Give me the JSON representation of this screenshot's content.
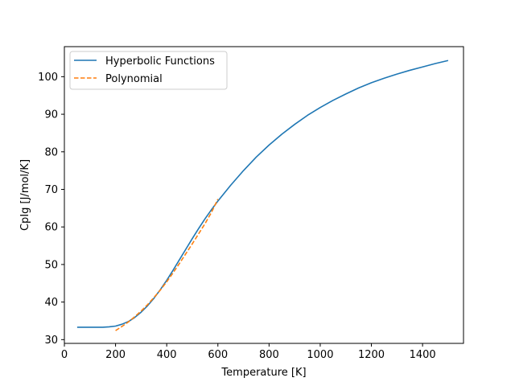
{
  "chart_data": {
    "type": "line",
    "xlabel": "Temperature [K]",
    "ylabel": "CpIg [J/mol/K]",
    "xlim": [
      0,
      1560
    ],
    "ylim": [
      29,
      108
    ],
    "xticks": [
      0,
      200,
      400,
      600,
      800,
      1000,
      1200,
      1400
    ],
    "yticks": [
      30,
      40,
      50,
      60,
      70,
      80,
      90,
      100
    ],
    "grid": false,
    "legend_position": "top-left",
    "series": [
      {
        "name": "Hyperbolic Functions",
        "color": "#1f77b4",
        "style": "solid",
        "x": [
          50,
          100,
          150,
          175,
          200,
          225,
          250,
          275,
          300,
          325,
          350,
          375,
          400,
          425,
          450,
          475,
          500,
          525,
          550,
          575,
          600,
          650,
          700,
          750,
          800,
          850,
          900,
          950,
          1000,
          1050,
          1100,
          1150,
          1200,
          1250,
          1300,
          1350,
          1400,
          1450,
          1500
        ],
        "y": [
          33.3,
          33.3,
          33.3,
          33.4,
          33.6,
          34.1,
          34.8,
          35.9,
          37.3,
          39.0,
          41.0,
          43.3,
          45.8,
          48.5,
          51.3,
          54.1,
          56.9,
          59.6,
          62.2,
          64.6,
          66.9,
          71.1,
          75.0,
          78.6,
          81.8,
          84.7,
          87.3,
          89.7,
          91.8,
          93.7,
          95.4,
          97.0,
          98.4,
          99.6,
          100.7,
          101.7,
          102.6,
          103.5,
          104.3
        ]
      },
      {
        "name": "Polynomial",
        "color": "#ff7f0e",
        "style": "dashed",
        "x": [
          200,
          225,
          250,
          275,
          300,
          325,
          350,
          375,
          400,
          425,
          450,
          475,
          500,
          525,
          550,
          575,
          600
        ],
        "y": [
          32.4,
          33.5,
          34.7,
          36.1,
          37.6,
          39.3,
          41.2,
          43.2,
          45.4,
          47.8,
          50.3,
          52.9,
          55.5,
          58.2,
          60.9,
          63.9,
          67.4
        ]
      }
    ]
  }
}
